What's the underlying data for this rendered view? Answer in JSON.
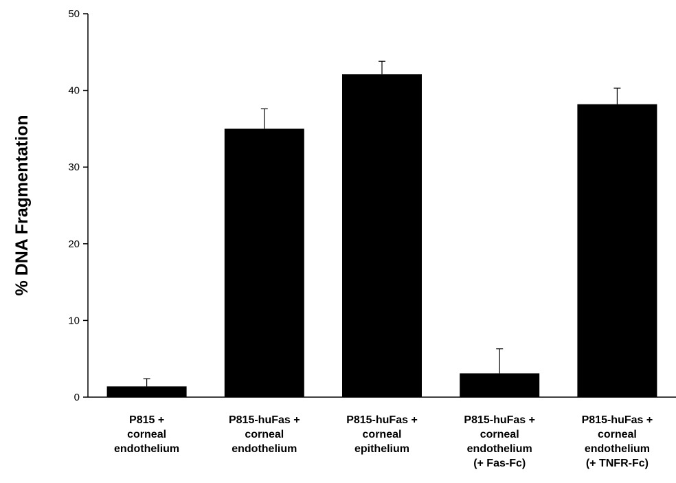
{
  "chart_data": {
    "type": "bar",
    "title": "",
    "xlabel": "",
    "ylabel": "% DNA Fragmentation",
    "ylim": [
      0,
      50
    ],
    "yticks": [
      0,
      10,
      20,
      30,
      40,
      50
    ],
    "grid": false,
    "legend": "none",
    "bar_color": "#000000",
    "categories": [
      [
        "P815 +",
        "corneal",
        "endothelium"
      ],
      [
        "P815-huFas +",
        "corneal",
        "endothelium"
      ],
      [
        "P815-huFas +",
        "corneal",
        "epithelium"
      ],
      [
        "P815-huFas +",
        "corneal",
        "endothelium",
        "(+ Fas-Fc)"
      ],
      [
        "P815-huFas +",
        "corneal",
        "endothelium",
        "(+ TNFR-Fc)"
      ]
    ],
    "values": [
      1.4,
      35.0,
      42.1,
      3.1,
      38.2
    ],
    "errors": [
      1.0,
      2.6,
      1.7,
      3.2,
      2.1
    ]
  }
}
